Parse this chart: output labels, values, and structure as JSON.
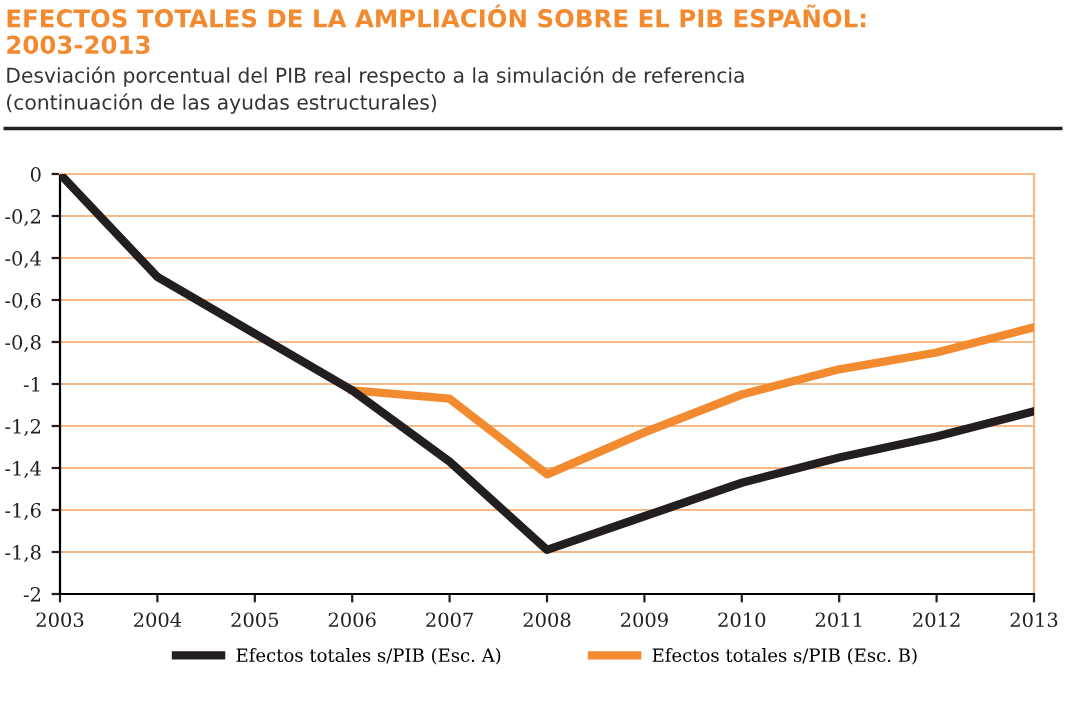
{
  "chart_data": {
    "type": "line",
    "title": "EFECTOS TOTALES DE LA AMPLIACIÓN SOBRE EL PIB ESPAÑOL:\n2003-2013",
    "subtitle": "Desviación porcentual del PIB real respecto a la simulación de referencia\n(continuación de las ayudas estructurales)",
    "x": [
      2003,
      2004,
      2005,
      2006,
      2007,
      2008,
      2009,
      2010,
      2011,
      2012,
      2013
    ],
    "xlim": [
      2003,
      2013
    ],
    "xticks": [
      2003,
      2004,
      2005,
      2006,
      2007,
      2008,
      2009,
      2010,
      2011,
      2012,
      2013
    ],
    "ylim": [
      -2,
      0
    ],
    "yticks": [
      {
        "value": 0,
        "label": "0"
      },
      {
        "value": -0.2,
        "label": "-0,2"
      },
      {
        "value": -0.4,
        "label": "-0,4"
      },
      {
        "value": -0.6,
        "label": "-0,6"
      },
      {
        "value": -0.8,
        "label": "-0,8"
      },
      {
        "value": -1,
        "label": "-1"
      },
      {
        "value": -1.2,
        "label": "-1,2"
      },
      {
        "value": -1.4,
        "label": "-1,4"
      },
      {
        "value": -1.6,
        "label": "-1,6"
      },
      {
        "value": -1.8,
        "label": "-1,8"
      },
      {
        "value": -2,
        "label": "-2"
      }
    ],
    "grid": "y",
    "legend": "bottom",
    "marker": "none",
    "line_style": "solid",
    "series": [
      {
        "name": "Efectos totales s/PIB (Esc. B)",
        "color": "#f28a30",
        "values": [
          null,
          null,
          null,
          -1.03,
          -1.07,
          -1.43,
          -1.23,
          -1.05,
          -0.93,
          -0.85,
          -0.73
        ]
      },
      {
        "name": "Efectos totales s/PIB (Esc. A)",
        "color": "#231f20",
        "values": [
          0,
          -0.49,
          -0.76,
          -1.03,
          -1.37,
          -1.79,
          -1.63,
          -1.47,
          -1.35,
          -1.25,
          -1.13
        ]
      }
    ]
  }
}
